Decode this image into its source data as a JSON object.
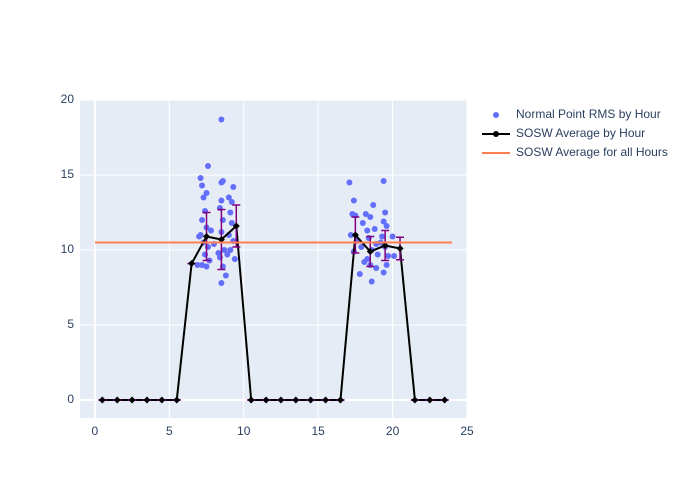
{
  "chart_data": {
    "type": "scatter",
    "xlim": [
      -1,
      25
    ],
    "ylim": [
      -1.2,
      20
    ],
    "xticks": [
      0,
      5,
      10,
      15,
      20,
      25
    ],
    "yticks": [
      0,
      5,
      10,
      15,
      20
    ],
    "grid": true,
    "legend": "top-right-outside",
    "series": [
      {
        "name": "Normal Point RMS by Hour",
        "color": "#636efa",
        "mode": "markers",
        "x": [
          7.1,
          7.2,
          7.3,
          7.5,
          7.6,
          7.4,
          7.2,
          7.5,
          7.1,
          7.3,
          7.6,
          7.4,
          7.7,
          7.5,
          7.2,
          7.8,
          8.0,
          8.3,
          8.5,
          8.5,
          8.6,
          8.5,
          8.4,
          8.6,
          8.5,
          8.7,
          8.4,
          8.6,
          8.8,
          8.5,
          8.9,
          9.0,
          9.2,
          9.3,
          9.1,
          9.2,
          9.0,
          9.3,
          9.1,
          9.4,
          6.9,
          7.0,
          17.1,
          17.4,
          17.3,
          17.5,
          17.2,
          17.6,
          17.4,
          17.8,
          18.0,
          18.2,
          18.3,
          18.5,
          18.7,
          18.4,
          18.6,
          18.3,
          18.5,
          18.6,
          18.9,
          18.8,
          19.0,
          19.2,
          19.4,
          19.5,
          19.4,
          19.6,
          19.3,
          19.5,
          19.7,
          19.4,
          19.6,
          20.0,
          20.1,
          17.9,
          18.1,
          18.9
        ],
        "values": [
          14.8,
          14.3,
          13.5,
          13.8,
          15.6,
          12.6,
          12.0,
          11.5,
          11.0,
          10.5,
          10.2,
          9.7,
          9.3,
          8.9,
          9.0,
          11.3,
          10.4,
          9.8,
          18.7,
          14.5,
          14.6,
          13.3,
          12.8,
          12.0,
          11.2,
          10.0,
          9.5,
          8.9,
          8.3,
          7.8,
          9.7,
          13.5,
          13.2,
          14.2,
          12.5,
          11.8,
          11.0,
          10.6,
          10.0,
          9.4,
          9.0,
          10.9,
          14.5,
          13.3,
          12.4,
          12.3,
          11.0,
          10.6,
          9.9,
          8.4,
          11.8,
          12.4,
          11.3,
          12.2,
          13.0,
          10.8,
          10.0,
          9.4,
          9.0,
          7.9,
          8.8,
          11.4,
          9.7,
          10.5,
          14.6,
          12.5,
          11.9,
          11.6,
          10.9,
          10.2,
          9.6,
          8.5,
          9.0,
          10.9,
          9.6,
          10.2,
          9.2,
          10.4
        ]
      },
      {
        "name": "SOSW Average by Hour",
        "color": "#000000",
        "mode": "lines+markers",
        "error_color": "#800080",
        "x": [
          0.5,
          1.5,
          2.5,
          3.5,
          4.5,
          5.5,
          6.5,
          7.5,
          8.5,
          9.5,
          10.5,
          11.5,
          12.5,
          13.5,
          14.5,
          15.5,
          16.5,
          17.5,
          18.5,
          19.5,
          20.5,
          21.5,
          22.5,
          23.5
        ],
        "values": [
          0,
          0,
          0,
          0,
          0,
          0,
          9.1,
          10.9,
          10.7,
          11.6,
          0,
          0,
          0,
          0,
          0,
          0,
          0,
          11.0,
          9.9,
          10.3,
          10.1,
          0,
          0,
          0
        ],
        "errors": [
          0,
          0,
          0,
          0,
          0,
          0,
          0,
          1.6,
          2.0,
          1.4,
          0,
          0,
          0,
          0,
          0,
          0,
          0,
          1.2,
          1.0,
          1.0,
          0.75,
          0,
          0,
          0
        ]
      },
      {
        "name": "SOSW Average for all Hours",
        "color": "#ff7f50",
        "mode": "lines",
        "x": [
          0,
          24
        ],
        "values": [
          10.5,
          10.5
        ]
      }
    ]
  }
}
